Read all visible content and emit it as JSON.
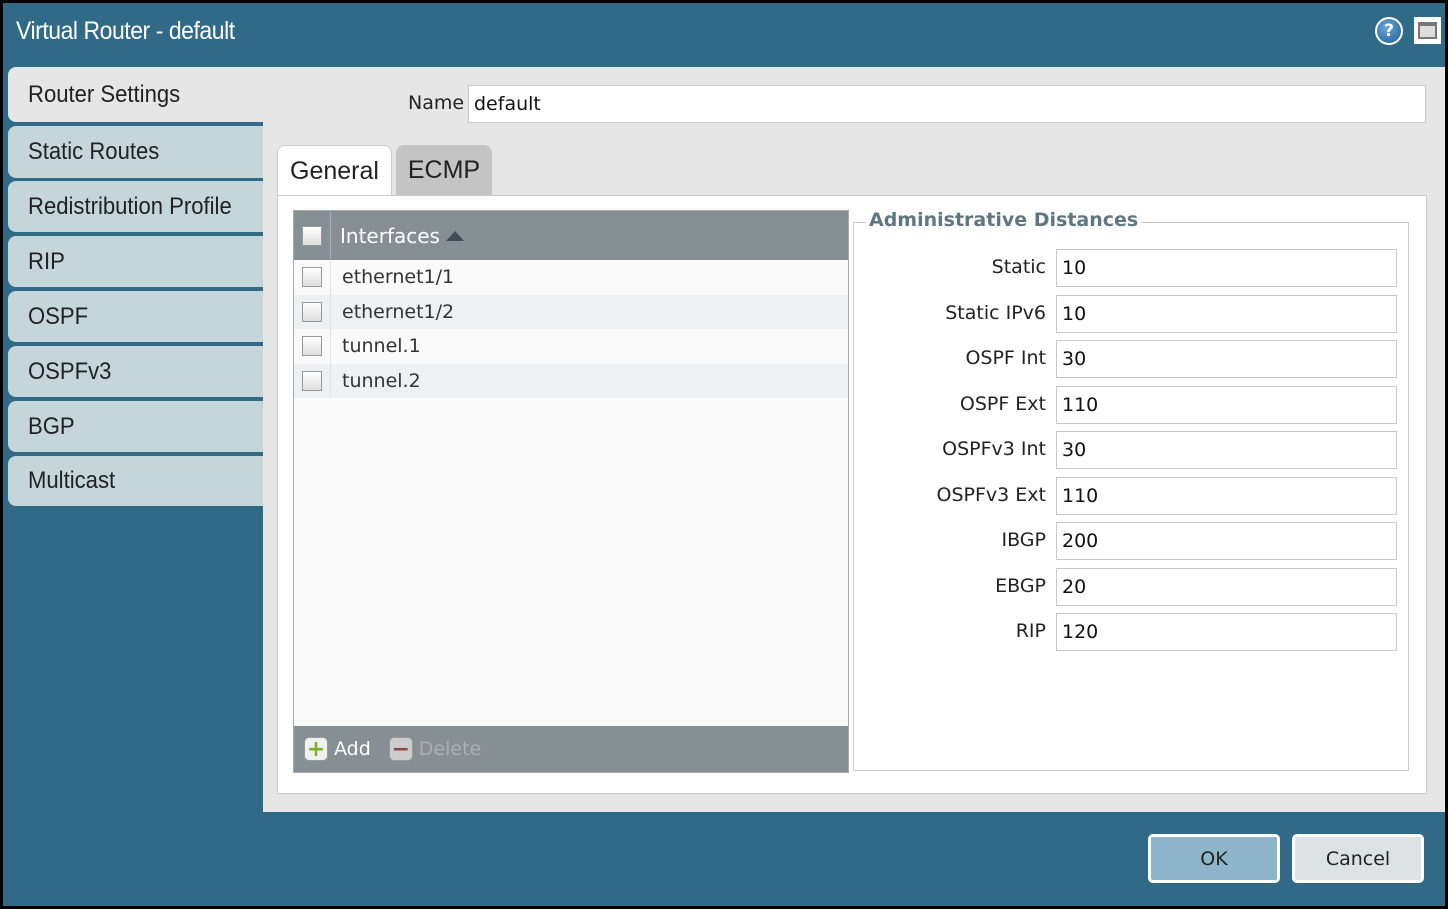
{
  "window": {
    "title": "Virtual Router - default",
    "help_icon": "question-circle-icon",
    "maximize_icon": "window-maximize-icon"
  },
  "sidebar": {
    "items": [
      {
        "label": "Router Settings",
        "active": true
      },
      {
        "label": "Static Routes"
      },
      {
        "label": "Redistribution Profile"
      },
      {
        "label": "RIP"
      },
      {
        "label": "OSPF"
      },
      {
        "label": "OSPFv3"
      },
      {
        "label": "BGP"
      },
      {
        "label": "Multicast"
      }
    ]
  },
  "name_field": {
    "label": "Name",
    "value": "default"
  },
  "tabs": [
    {
      "label": "General",
      "active": true
    },
    {
      "label": "ECMP"
    }
  ],
  "interfaces": {
    "header": "Interfaces",
    "sort": "ascending",
    "rows": [
      "ethernet1/1",
      "ethernet1/2",
      "tunnel.1",
      "tunnel.2"
    ],
    "add_label": "Add",
    "delete_label": "Delete"
  },
  "admin": {
    "legend": "Administrative Distances",
    "fields": [
      {
        "label": "Static",
        "value": "10"
      },
      {
        "label": "Static IPv6",
        "value": "10"
      },
      {
        "label": "OSPF Int",
        "value": "30"
      },
      {
        "label": "OSPF Ext",
        "value": "110"
      },
      {
        "label": "OSPFv3 Int",
        "value": "30"
      },
      {
        "label": "OSPFv3 Ext",
        "value": "110"
      },
      {
        "label": "IBGP",
        "value": "200"
      },
      {
        "label": "EBGP",
        "value": "20"
      },
      {
        "label": "RIP",
        "value": "120"
      }
    ]
  },
  "buttons": {
    "ok": "OK",
    "cancel": "Cancel"
  },
  "colors": {
    "titlebar": "#316a87",
    "sidebar_item": "#c5d6da",
    "grid_header": "#868f94",
    "ok_button": "#8fb5ca",
    "legend": "#5f7780"
  }
}
